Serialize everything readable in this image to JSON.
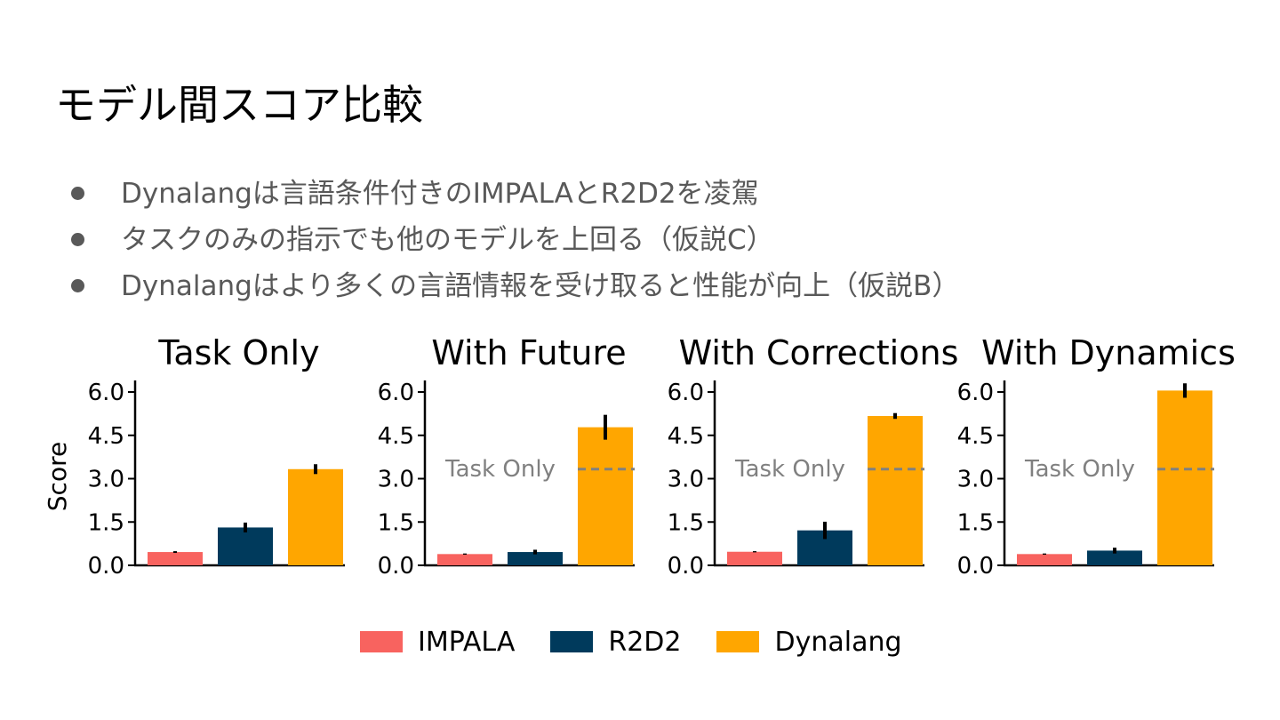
{
  "slide": {
    "title": "モデル間スコア比較",
    "bullets": [
      "Dynalangは言語条件付きのIMPALAとR2D2を凌駕",
      "タスクのみの指示でも他のモデルを上回る（仮説C）",
      "Dynalangはより多くの言語情報を受け取ると性能が向上（仮説B）"
    ]
  },
  "chart_data": {
    "type": "bar",
    "ylabel": "Score",
    "ylim": [
      0,
      6.4
    ],
    "yticks": [
      "0.0",
      "1.5",
      "3.0",
      "4.5",
      "6.0"
    ],
    "grid": false,
    "legend": "bottom-center",
    "reference_label": "Task Only",
    "reference_color": "#808080",
    "series": [
      {
        "name": "IMPALA",
        "color": "#F8635F"
      },
      {
        "name": "R2D2",
        "color": "#003A5C"
      },
      {
        "name": "Dynalang",
        "color": "#FFA600"
      }
    ],
    "panels": [
      {
        "title": "Task Only",
        "values": [
          0.46,
          1.31,
          3.33
        ],
        "errors": [
          0.03,
          0.17,
          0.17
        ],
        "reference": null
      },
      {
        "title": "With Future",
        "values": [
          0.39,
          0.46,
          4.78
        ],
        "errors": [
          0.02,
          0.08,
          0.43
        ],
        "reference": 3.33
      },
      {
        "title": "With Corrections",
        "values": [
          0.47,
          1.21,
          5.17
        ],
        "errors": [
          0.02,
          0.3,
          0.1
        ],
        "reference": 3.33
      },
      {
        "title": "With Dynamics",
        "values": [
          0.39,
          0.51,
          6.05
        ],
        "errors": [
          0.02,
          0.1,
          0.25
        ],
        "reference": 3.33
      }
    ]
  }
}
